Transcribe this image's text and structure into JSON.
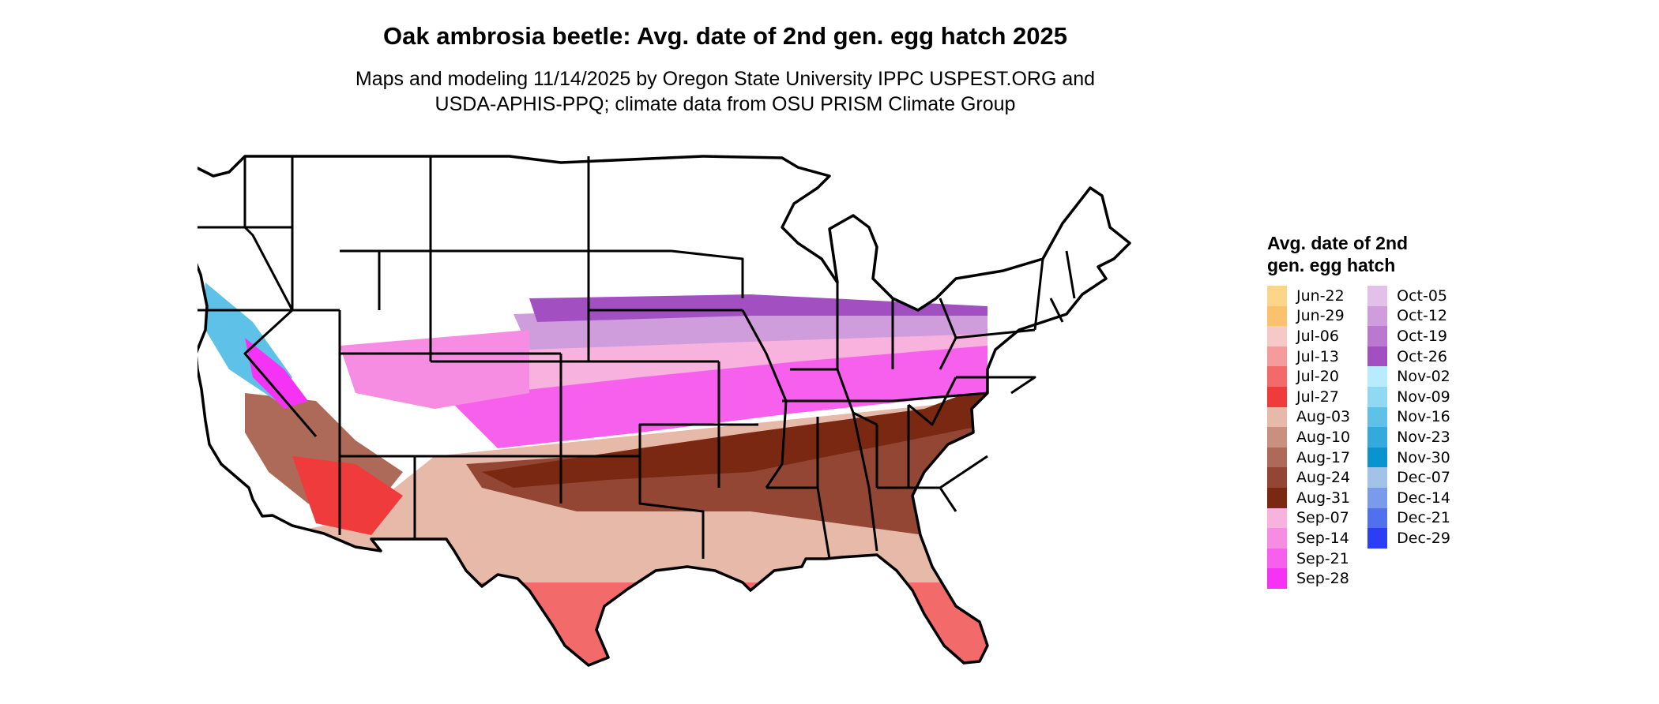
{
  "title": "Oak ambrosia beetle: Avg. date of 2nd gen. egg hatch 2025",
  "subtitle_line1": "Maps and modeling 11/14/2025 by Oregon State University IPPC USPEST.ORG and",
  "subtitle_line2": "USDA-APHIS-PPQ; climate data from OSU PRISM Climate Group",
  "legend": {
    "title": "Avg. date of 2nd gen. egg hatch",
    "col1": [
      {
        "label": "Jun-22",
        "color": "#FCD48A"
      },
      {
        "label": "Jun-29",
        "color": "#FBC26E"
      },
      {
        "label": "Jul-06",
        "color": "#F6C9C9"
      },
      {
        "label": "Jul-13",
        "color": "#F49B9B"
      },
      {
        "label": "Jul-20",
        "color": "#F26A6A"
      },
      {
        "label": "Jul-27",
        "color": "#EF3B3B"
      },
      {
        "label": "Aug-03",
        "color": "#E6B9A8"
      },
      {
        "label": "Aug-10",
        "color": "#C99080"
      },
      {
        "label": "Aug-17",
        "color": "#AE6A58"
      },
      {
        "label": "Aug-24",
        "color": "#944634"
      },
      {
        "label": "Aug-31",
        "color": "#7A2812"
      },
      {
        "label": "Sep-07",
        "color": "#F7B2DE"
      },
      {
        "label": "Sep-14",
        "color": "#F78CE3"
      },
      {
        "label": "Sep-21",
        "color": "#F660EC"
      },
      {
        "label": "Sep-28",
        "color": "#F533F5"
      }
    ],
    "col2": [
      {
        "label": "Oct-05",
        "color": "#E3C0E9"
      },
      {
        "label": "Oct-12",
        "color": "#CF9CDC"
      },
      {
        "label": "Oct-19",
        "color": "#BB78CF"
      },
      {
        "label": "Oct-26",
        "color": "#A24FC2"
      },
      {
        "label": "Nov-02",
        "color": "#B6ECFC"
      },
      {
        "label": "Nov-09",
        "color": "#8FD9F2"
      },
      {
        "label": "Nov-16",
        "color": "#5EC2E8"
      },
      {
        "label": "Nov-23",
        "color": "#33AADB"
      },
      {
        "label": "Nov-30",
        "color": "#0993CF"
      },
      {
        "label": "Dec-07",
        "color": "#A3C2E8"
      },
      {
        "label": "Dec-14",
        "color": "#7A9BEB"
      },
      {
        "label": "Dec-21",
        "color": "#5170EE"
      },
      {
        "label": "Dec-29",
        "color": "#2B3DF5"
      }
    ]
  }
}
